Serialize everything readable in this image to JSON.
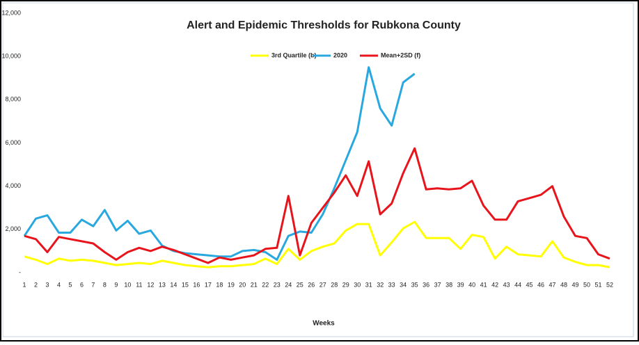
{
  "chart_data": {
    "type": "line",
    "title": "Alert and Epidemic Thresholds for Rubkona County",
    "x_label": "Weeks",
    "categories": [
      "1",
      "2",
      "3",
      "4",
      "5",
      "6",
      "7",
      "8",
      "9",
      "10",
      "11",
      "12",
      "13",
      "14",
      "15",
      "16",
      "17",
      "18",
      "19",
      "20",
      "21",
      "22",
      "23",
      "24",
      "25",
      "26",
      "27",
      "28",
      "29",
      "30",
      "31",
      "32",
      "33",
      "34",
      "35",
      "36",
      "37",
      "38",
      "39",
      "40",
      "41",
      "42",
      "43",
      "44",
      "45",
      "46",
      "47",
      "48",
      "49",
      "50",
      "51",
      "52"
    ],
    "series": [
      {
        "name": "3rd Quartile (b)",
        "color": "#ffff00",
        "values": [
          750,
          600,
          400,
          650,
          550,
          600,
          550,
          450,
          350,
          400,
          450,
          400,
          550,
          450,
          350,
          300,
          250,
          300,
          300,
          350,
          400,
          650,
          400,
          1100,
          600,
          1000,
          1200,
          1350,
          1950,
          2250,
          2250,
          800,
          1400,
          2050,
          2350,
          1600,
          1600,
          1600,
          1100,
          1750,
          1650,
          650,
          1200,
          850,
          800,
          750,
          1450,
          700,
          500,
          350,
          350,
          250
        ]
      },
      {
        "name": "2020",
        "color": "#29a8e0",
        "values": [
          1700,
          2500,
          2650,
          1850,
          1850,
          2450,
          2150,
          2900,
          1950,
          2400,
          1800,
          1950,
          1250,
          1000,
          900,
          850,
          800,
          750,
          750,
          1000,
          1050,
          950,
          600,
          1700,
          1900,
          1850,
          2700,
          3900,
          5200,
          6500,
          9500,
          7600,
          6800,
          8800,
          9200,
          null,
          null,
          null,
          null,
          null,
          null,
          null,
          null,
          null,
          null,
          null,
          null,
          null,
          null,
          null,
          null,
          null
        ]
      },
      {
        "name": "Mean+2SD (f)",
        "color": "#e8141b",
        "values": [
          1700,
          1550,
          950,
          1650,
          1550,
          1450,
          1350,
          950,
          600,
          950,
          1150,
          1000,
          1200,
          1050,
          850,
          650,
          450,
          700,
          600,
          700,
          800,
          1100,
          1150,
          3550,
          800,
          2300,
          3000,
          3700,
          4500,
          3550,
          5150,
          2700,
          3200,
          4600,
          5750,
          3850,
          3900,
          3850,
          3900,
          4250,
          3100,
          2450,
          2450,
          3300,
          3450,
          3600,
          4000,
          2600,
          1700,
          1600,
          850,
          650
        ]
      }
    ],
    "ylim": [
      0,
      12000
    ],
    "yticks": [
      {
        "value": 0,
        "label": "-"
      },
      {
        "value": 2000,
        "label": "2,000"
      },
      {
        "value": 4000,
        "label": "4,000"
      },
      {
        "value": 6000,
        "label": "6,000"
      },
      {
        "value": 8000,
        "label": "8,000"
      },
      {
        "value": 10000,
        "label": "10,000"
      },
      {
        "value": 12000,
        "label": "12,000"
      }
    ],
    "legend": "top",
    "grid": false
  }
}
